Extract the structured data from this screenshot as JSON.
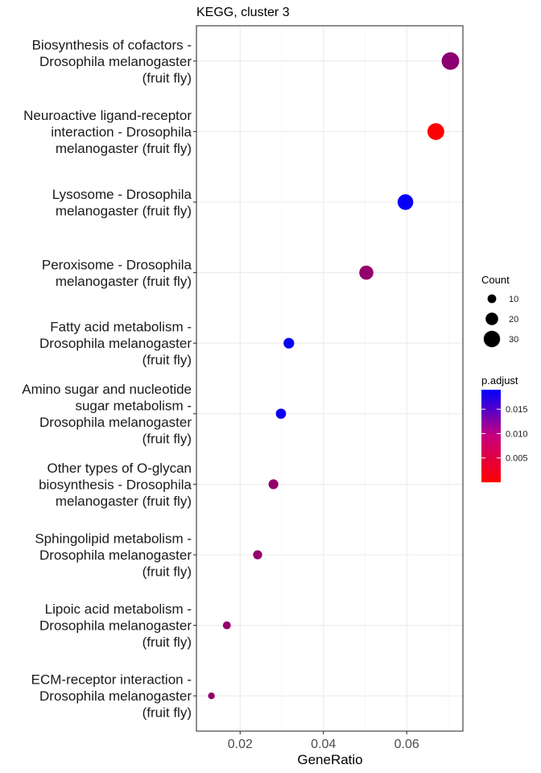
{
  "chart_data": {
    "type": "scatter",
    "title": "KEGG, cluster 3",
    "xlabel": "GeneRatio",
    "ylabel": "",
    "xlim": [
      0.0095,
      0.0735
    ],
    "xticks": [
      0.02,
      0.04,
      0.06
    ],
    "xtick_labels": [
      "0.02",
      "0.04",
      "0.06"
    ],
    "grid": true,
    "categories": [
      {
        "label_lines": [
          "Biosynthesis of cofactors -",
          "Drosophila melanogaster",
          "(fruit fly)"
        ],
        "gene_ratio": 0.0705,
        "count": 33,
        "p_adjust": 0.0085
      },
      {
        "label_lines": [
          "Neuroactive ligand-receptor",
          "interaction - Drosophila",
          "melanogaster (fruit fly)"
        ],
        "gene_ratio": 0.067,
        "count": 31,
        "p_adjust": 0.0002
      },
      {
        "label_lines": [
          "Lysosome - Drosophila",
          "melanogaster (fruit fly)"
        ],
        "gene_ratio": 0.0597,
        "count": 28,
        "p_adjust": 0.0185
      },
      {
        "label_lines": [
          "Peroxisome - Drosophila",
          "melanogaster (fruit fly)"
        ],
        "gene_ratio": 0.0503,
        "count": 24,
        "p_adjust": 0.008
      },
      {
        "label_lines": [
          "Fatty acid metabolism -",
          "Drosophila melanogaster",
          "(fruit fly)"
        ],
        "gene_ratio": 0.0317,
        "count": 15,
        "p_adjust": 0.0185
      },
      {
        "label_lines": [
          "Amino sugar and nucleotide",
          "sugar metabolism -",
          "Drosophila melanogaster",
          "(fruit fly)"
        ],
        "gene_ratio": 0.0298,
        "count": 14,
        "p_adjust": 0.018
      },
      {
        "label_lines": [
          "Other types of O-glycan",
          "biosynthesis - Drosophila",
          "melanogaster (fruit fly)"
        ],
        "gene_ratio": 0.028,
        "count": 13,
        "p_adjust": 0.008
      },
      {
        "label_lines": [
          "Sphingolipid metabolism -",
          "Drosophila melanogaster",
          "(fruit fly)"
        ],
        "gene_ratio": 0.0242,
        "count": 11,
        "p_adjust": 0.008
      },
      {
        "label_lines": [
          "Lipoic acid metabolism -",
          "Drosophila melanogaster",
          "(fruit fly)"
        ],
        "gene_ratio": 0.0168,
        "count": 8,
        "p_adjust": 0.008
      },
      {
        "label_lines": [
          "ECM-receptor interaction -",
          "Drosophila melanogaster",
          "(fruit fly)"
        ],
        "gene_ratio": 0.0131,
        "count": 5,
        "p_adjust": 0.008
      }
    ],
    "size_legend": {
      "title": "Count",
      "values": [
        10,
        20,
        30
      ],
      "labels": [
        "10",
        "20",
        "30"
      ]
    },
    "color_legend": {
      "title": "p.adjust",
      "range": [
        0.0,
        0.019
      ],
      "ticks": [
        0.005,
        0.01,
        0.015
      ],
      "tick_labels": [
        "0.005",
        "0.010",
        "0.015"
      ],
      "low_color": "#ff0000",
      "high_color": "#0000ff"
    }
  }
}
